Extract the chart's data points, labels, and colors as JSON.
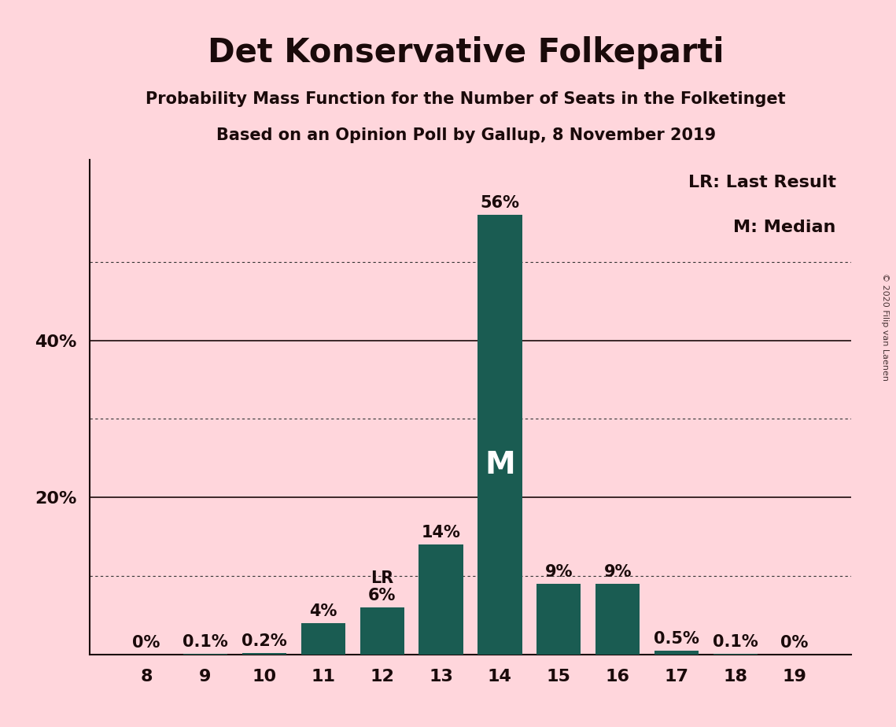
{
  "title": "Det Konservative Folkeparti",
  "subtitle1": "Probability Mass Function for the Number of Seats in the Folketinget",
  "subtitle2": "Based on an Opinion Poll by Gallup, 8 November 2019",
  "copyright": "© 2020 Filip van Laenen",
  "seats": [
    8,
    9,
    10,
    11,
    12,
    13,
    14,
    15,
    16,
    17,
    18,
    19
  ],
  "probabilities": [
    0.0,
    0.001,
    0.002,
    0.04,
    0.06,
    0.14,
    0.56,
    0.09,
    0.09,
    0.005,
    0.001,
    0.0
  ],
  "labels": [
    "0%",
    "0.1%",
    "0.2%",
    "4%",
    "6%",
    "14%",
    "56%",
    "9%",
    "9%",
    "0.5%",
    "0.1%",
    "0%"
  ],
  "bar_color": "#1a5c52",
  "background_color": "#ffd6dc",
  "text_color": "#1a0a0a",
  "last_result_seat": 12,
  "median_seat": 14,
  "legend_lr": "LR: Last Result",
  "legend_m": "M: Median",
  "ytick_positions": [
    0.1,
    0.2,
    0.3,
    0.4,
    0.5
  ],
  "ytick_labels_map": {
    "0.2": "20%",
    "0.4": "40%"
  },
  "solid_yticks": [
    0.2,
    0.4
  ],
  "dotted_yticks": [
    0.1,
    0.3,
    0.5
  ],
  "ylim": [
    0,
    0.63
  ],
  "label_fontsize": 15,
  "title_fontsize": 30,
  "subtitle_fontsize": 15,
  "bar_width": 0.75
}
